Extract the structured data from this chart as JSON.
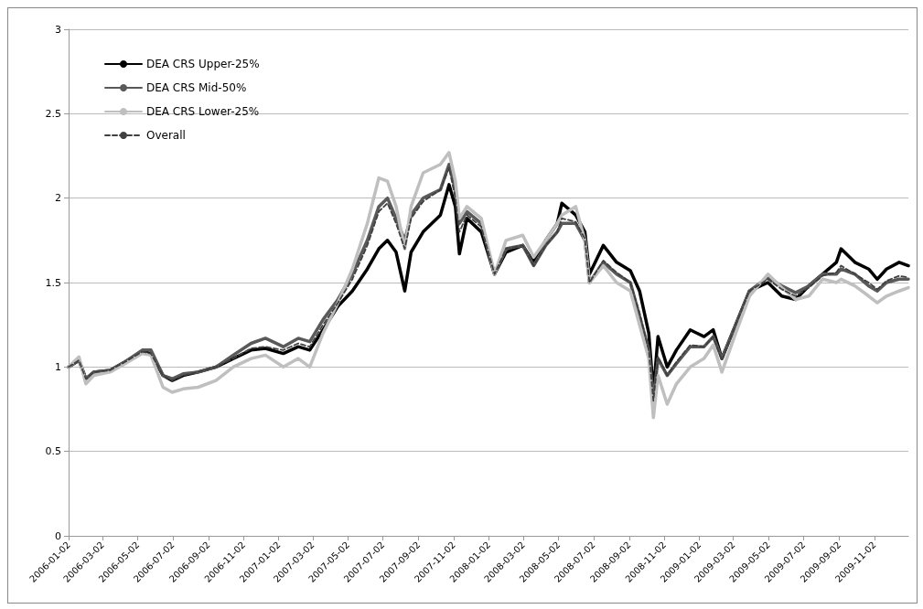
{
  "chart_data": {
    "type": "line",
    "x": [
      "2006-01-02",
      "2006-01-20",
      "2006-02-01",
      "2006-02-15",
      "2006-03-15",
      "2006-04-10",
      "2006-05-10",
      "2006-05-25",
      "2006-06-15",
      "2006-07-01",
      "2006-07-20",
      "2006-08-15",
      "2006-09-15",
      "2006-10-15",
      "2006-11-15",
      "2006-12-10",
      "2007-01-10",
      "2007-02-05",
      "2007-02-25",
      "2007-03-20",
      "2007-04-15",
      "2007-05-10",
      "2007-06-05",
      "2007-06-25",
      "2007-07-10",
      "2007-07-25",
      "2007-08-09",
      "2007-08-20",
      "2007-09-10",
      "2007-10-10",
      "2007-10-25",
      "2007-11-05",
      "2007-11-12",
      "2007-11-25",
      "2007-12-20",
      "2008-01-12",
      "2008-02-01",
      "2008-03-01",
      "2008-03-20",
      "2008-04-10",
      "2008-04-30",
      "2008-05-08",
      "2008-06-01",
      "2008-06-17",
      "2008-06-25",
      "2008-07-19",
      "2008-08-11",
      "2008-09-04",
      "2008-09-20",
      "2008-10-06",
      "2008-10-14",
      "2008-10-22",
      "2008-11-07",
      "2008-11-23",
      "2008-12-17",
      "2009-01-10",
      "2009-01-26",
      "2009-02-10",
      "2009-03-06",
      "2009-03-30",
      "2009-05-01",
      "2009-05-25",
      "2009-06-18",
      "2009-07-11",
      "2009-08-04",
      "2009-08-28",
      "2009-09-05",
      "2009-09-29",
      "2009-10-23",
      "2009-11-07",
      "2009-11-23",
      "2009-12-15",
      "2009-12-31"
    ],
    "series": [
      {
        "name": "DEA CRS Upper-25%",
        "color": "#000000",
        "values": [
          1.0,
          1.04,
          0.93,
          0.97,
          0.98,
          1.03,
          1.09,
          1.08,
          0.95,
          0.92,
          0.95,
          0.97,
          1.0,
          1.05,
          1.1,
          1.11,
          1.08,
          1.12,
          1.1,
          1.22,
          1.36,
          1.45,
          1.58,
          1.7,
          1.75,
          1.68,
          1.45,
          1.68,
          1.8,
          1.9,
          2.08,
          1.95,
          1.67,
          1.88,
          1.8,
          1.55,
          1.68,
          1.72,
          1.62,
          1.75,
          1.85,
          1.97,
          1.9,
          1.8,
          1.55,
          1.72,
          1.62,
          1.57,
          1.45,
          1.2,
          0.85,
          1.18,
          1.0,
          1.1,
          1.22,
          1.18,
          1.22,
          1.05,
          1.25,
          1.45,
          1.5,
          1.42,
          1.4,
          1.48,
          1.55,
          1.62,
          1.7,
          1.62,
          1.58,
          1.52,
          1.58,
          1.62,
          1.6
        ]
      },
      {
        "name": "DEA CRS Mid-50%",
        "color": "#595959",
        "values": [
          1.0,
          1.04,
          0.93,
          0.97,
          0.98,
          1.03,
          1.1,
          1.1,
          0.95,
          0.93,
          0.96,
          0.97,
          1.0,
          1.07,
          1.14,
          1.17,
          1.12,
          1.17,
          1.15,
          1.28,
          1.4,
          1.55,
          1.75,
          1.95,
          2.0,
          1.88,
          1.75,
          1.9,
          2.0,
          2.05,
          2.2,
          2.05,
          1.85,
          1.92,
          1.85,
          1.55,
          1.7,
          1.72,
          1.6,
          1.72,
          1.8,
          1.85,
          1.85,
          1.75,
          1.5,
          1.62,
          1.55,
          1.5,
          1.3,
          1.1,
          0.8,
          1.05,
          0.95,
          1.02,
          1.12,
          1.12,
          1.18,
          1.05,
          1.25,
          1.45,
          1.53,
          1.48,
          1.44,
          1.48,
          1.55,
          1.55,
          1.58,
          1.55,
          1.48,
          1.45,
          1.5,
          1.52,
          1.52
        ]
      },
      {
        "name": "DEA CRS Lower-25%",
        "color": "#bfbfbf",
        "values": [
          1.0,
          1.06,
          0.9,
          0.95,
          0.97,
          1.02,
          1.08,
          1.07,
          0.88,
          0.85,
          0.87,
          0.88,
          0.92,
          1.0,
          1.05,
          1.07,
          1.0,
          1.05,
          1.0,
          1.2,
          1.38,
          1.58,
          1.85,
          2.12,
          2.1,
          1.95,
          1.7,
          1.95,
          2.15,
          2.2,
          2.27,
          2.1,
          1.88,
          1.95,
          1.88,
          1.55,
          1.75,
          1.78,
          1.65,
          1.75,
          1.85,
          1.9,
          1.95,
          1.75,
          1.5,
          1.6,
          1.5,
          1.45,
          1.25,
          1.05,
          0.7,
          0.95,
          0.78,
          0.9,
          1.0,
          1.05,
          1.13,
          0.97,
          1.2,
          1.42,
          1.55,
          1.47,
          1.4,
          1.42,
          1.52,
          1.5,
          1.52,
          1.48,
          1.42,
          1.38,
          1.42,
          1.45,
          1.47
        ]
      },
      {
        "name": "Overall",
        "color": "#404040",
        "line_style": "dashed",
        "values": [
          1.0,
          1.04,
          0.93,
          0.97,
          0.98,
          1.03,
          1.09,
          1.08,
          0.95,
          0.92,
          0.95,
          0.97,
          1.0,
          1.05,
          1.11,
          1.12,
          1.1,
          1.14,
          1.12,
          1.25,
          1.38,
          1.52,
          1.72,
          1.92,
          1.97,
          1.85,
          1.7,
          1.88,
          1.98,
          2.05,
          2.18,
          2.0,
          1.8,
          1.9,
          1.83,
          1.55,
          1.7,
          1.72,
          1.6,
          1.72,
          1.8,
          1.88,
          1.86,
          1.76,
          1.5,
          1.63,
          1.56,
          1.5,
          1.32,
          1.1,
          0.8,
          1.06,
          0.95,
          1.03,
          1.13,
          1.12,
          1.18,
          1.04,
          1.25,
          1.45,
          1.52,
          1.46,
          1.42,
          1.47,
          1.54,
          1.56,
          1.6,
          1.55,
          1.5,
          1.46,
          1.51,
          1.54,
          1.53
        ]
      }
    ],
    "xlim": [
      "2006-01-02",
      "2009-12-31"
    ],
    "xticks": [
      "2006-01-02",
      "2006-03-02",
      "2006-05-02",
      "2006-07-02",
      "2006-09-02",
      "2006-11-02",
      "2007-01-02",
      "2007-03-02",
      "2007-05-02",
      "2007-07-02",
      "2007-09-02",
      "2007-11-02",
      "2008-01-02",
      "2008-03-02",
      "2008-05-02",
      "2008-07-02",
      "2008-09-02",
      "2008-11-02",
      "2009-01-02",
      "2009-03-02",
      "2009-05-02",
      "2009-07-02",
      "2009-09-02",
      "2009-11-02"
    ],
    "ylim": [
      0,
      3
    ],
    "yticks": [
      0,
      0.5,
      1,
      1.5,
      2,
      2.5,
      3
    ],
    "grid": "y",
    "legend": "top left",
    "marker": "none",
    "line_style": "solid"
  }
}
